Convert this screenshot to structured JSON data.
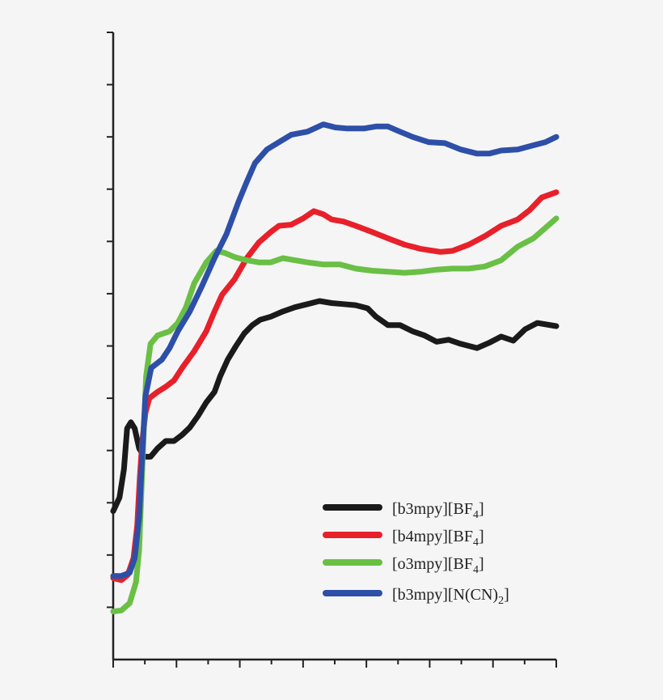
{
  "chart_data": {
    "type": "line",
    "title": "",
    "xlabel": "",
    "ylabel": "",
    "xlim": [
      0,
      7
    ],
    "ylim": [
      0,
      6
    ],
    "x_major_step": 1,
    "x_minor_step": 0.5,
    "y_major_step": 1,
    "y_minor_step": 0.5,
    "tick_labels_shown": false,
    "grid": false,
    "legend_position": "bottom-right",
    "series": [
      {
        "name": "[b3mpy][BF4]",
        "label_parts": {
          "main": "[b3mpy][BF",
          "sub": "4",
          "tail": "]"
        },
        "color": "#1a1a1a",
        "x": [
          0,
          0.1,
          0.17,
          0.22,
          0.28,
          0.34,
          0.41,
          0.49,
          0.59,
          0.7,
          0.83,
          0.96,
          1.09,
          1.21,
          1.34,
          1.47,
          1.6,
          1.69,
          1.81,
          1.94,
          2.07,
          2.2,
          2.32,
          2.49,
          2.68,
          2.87,
          3.07,
          3.26,
          3.45,
          3.64,
          3.83,
          4.02,
          4.15,
          4.34,
          4.53,
          4.73,
          4.92,
          5.11,
          5.3,
          5.49,
          5.75,
          5.94,
          6.13,
          6.32,
          6.51,
          6.7,
          7.0
        ],
        "y": [
          1.42,
          1.55,
          1.82,
          2.21,
          2.27,
          2.21,
          2.02,
          1.94,
          1.94,
          2.02,
          2.09,
          2.09,
          2.15,
          2.22,
          2.33,
          2.46,
          2.56,
          2.71,
          2.87,
          3.0,
          3.12,
          3.2,
          3.25,
          3.28,
          3.33,
          3.37,
          3.4,
          3.43,
          3.41,
          3.4,
          3.39,
          3.36,
          3.28,
          3.2,
          3.2,
          3.14,
          3.1,
          3.04,
          3.06,
          3.02,
          2.98,
          3.03,
          3.09,
          3.05,
          3.16,
          3.22,
          3.19
        ]
      },
      {
        "name": "[b4mpy][BF4]",
        "label_parts": {
          "main": "[b4mpy][BF",
          "sub": "4",
          "tail": "]"
        },
        "color": "#e8202a",
        "x": [
          0,
          0.13,
          0.23,
          0.32,
          0.38,
          0.42,
          0.46,
          0.51,
          0.57,
          0.7,
          0.83,
          0.96,
          1.09,
          1.28,
          1.47,
          1.6,
          1.72,
          1.92,
          2.11,
          2.3,
          2.49,
          2.62,
          2.81,
          3.0,
          3.17,
          3.32,
          3.45,
          3.64,
          3.83,
          4.09,
          4.34,
          4.6,
          4.85,
          5.17,
          5.36,
          5.62,
          5.87,
          6.13,
          6.39,
          6.58,
          6.77,
          7.0
        ],
        "y": [
          0.78,
          0.76,
          0.81,
          0.97,
          1.28,
          1.74,
          2.09,
          2.36,
          2.5,
          2.56,
          2.61,
          2.67,
          2.79,
          2.95,
          3.14,
          3.33,
          3.49,
          3.64,
          3.84,
          3.99,
          4.09,
          4.15,
          4.16,
          4.22,
          4.29,
          4.26,
          4.21,
          4.19,
          4.15,
          4.09,
          4.03,
          3.97,
          3.93,
          3.9,
          3.91,
          3.97,
          4.05,
          4.15,
          4.21,
          4.3,
          4.42,
          4.47
        ]
      },
      {
        "name": "[o3mpy][BF4]",
        "label_parts": {
          "main": "[o3mpy][BF",
          "sub": "4",
          "tail": "]"
        },
        "color": "#6abf45",
        "x": [
          0,
          0.13,
          0.26,
          0.36,
          0.41,
          0.45,
          0.49,
          0.52,
          0.59,
          0.7,
          0.89,
          1.02,
          1.15,
          1.28,
          1.47,
          1.63,
          1.76,
          1.92,
          2.11,
          2.3,
          2.49,
          2.68,
          2.87,
          3.07,
          3.32,
          3.58,
          3.83,
          4.09,
          4.34,
          4.6,
          4.85,
          5.11,
          5.36,
          5.62,
          5.87,
          6.13,
          6.39,
          6.64,
          6.83,
          7.0
        ],
        "y": [
          0.46,
          0.47,
          0.54,
          0.74,
          1.05,
          1.67,
          2.29,
          2.71,
          3.02,
          3.1,
          3.14,
          3.22,
          3.37,
          3.6,
          3.8,
          3.91,
          3.89,
          3.85,
          3.82,
          3.8,
          3.8,
          3.84,
          3.82,
          3.8,
          3.78,
          3.78,
          3.74,
          3.72,
          3.71,
          3.7,
          3.71,
          3.73,
          3.74,
          3.74,
          3.76,
          3.82,
          3.95,
          4.03,
          4.13,
          4.22
        ]
      },
      {
        "name": "[b3mpy][N(CN)2]",
        "label_parts": {
          "main": "[b3mpy][N(CN)",
          "sub": "2",
          "tail": "]"
        },
        "color": "#2e4fa8",
        "x": [
          0,
          0.13,
          0.26,
          0.34,
          0.41,
          0.46,
          0.51,
          0.6,
          0.77,
          0.89,
          1.02,
          1.21,
          1.4,
          1.6,
          1.79,
          1.98,
          2.11,
          2.24,
          2.43,
          2.62,
          2.81,
          3.07,
          3.32,
          3.51,
          3.7,
          3.96,
          4.15,
          4.34,
          4.53,
          4.73,
          4.98,
          5.24,
          5.49,
          5.75,
          5.94,
          6.13,
          6.39,
          6.64,
          6.83,
          7.0
        ],
        "y": [
          0.8,
          0.8,
          0.83,
          0.97,
          1.36,
          1.98,
          2.52,
          2.79,
          2.87,
          2.98,
          3.14,
          3.33,
          3.57,
          3.84,
          4.07,
          4.38,
          4.57,
          4.75,
          4.88,
          4.95,
          5.02,
          5.05,
          5.12,
          5.09,
          5.08,
          5.08,
          5.1,
          5.1,
          5.05,
          5.0,
          4.95,
          4.94,
          4.88,
          4.84,
          4.84,
          4.87,
          4.88,
          4.92,
          4.95,
          5.0
        ]
      }
    ]
  }
}
